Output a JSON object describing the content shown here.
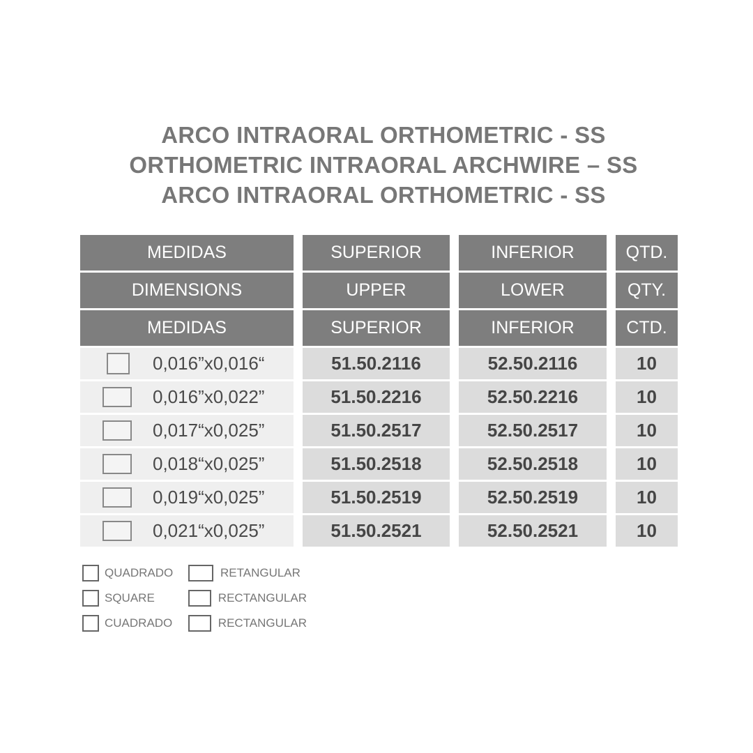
{
  "titles": [
    "ARCO INTRAORAL ORTHOMETRIC - SS",
    "ORTHOMETRIC INTRAORAL ARCHWIRE – SS",
    "ARCO INTRAORAL ORTHOMETRIC - SS"
  ],
  "headers": [
    [
      "MEDIDAS",
      "SUPERIOR",
      "INFERIOR",
      "QTD."
    ],
    [
      "DIMENSIONS",
      "UPPER",
      "LOWER",
      "QTY."
    ],
    [
      "MEDIDAS",
      "SUPERIOR",
      "INFERIOR",
      "CTD."
    ]
  ],
  "rows": [
    {
      "shape": "square",
      "dim": "0,016”x0,016“",
      "upper": "51.50.2116",
      "lower": "52.50.2116",
      "qty": "10"
    },
    {
      "shape": "rectangular",
      "dim": "0,016”x0,022”",
      "upper": "51.50.2216",
      "lower": "52.50.2216",
      "qty": "10"
    },
    {
      "shape": "rectangular",
      "dim": "0,017“x0,025”",
      "upper": "51.50.2517",
      "lower": "52.50.2517",
      "qty": "10"
    },
    {
      "shape": "rectangular",
      "dim": "0,018“x0,025”",
      "upper": "51.50.2518",
      "lower": "52.50.2518",
      "qty": "10"
    },
    {
      "shape": "rectangular",
      "dim": "0,019“x0,025”",
      "upper": "51.50.2519",
      "lower": "52.50.2519",
      "qty": "10"
    },
    {
      "shape": "rectangular",
      "dim": "0,021“x0,025”",
      "upper": "51.50.2521",
      "lower": "52.50.2521",
      "qty": "10"
    }
  ],
  "legend": {
    "square": [
      "QUADRADO",
      "SQUARE",
      "CUADRADO"
    ],
    "rectangular": [
      "RETANGULAR",
      "RECTANGULAR",
      "RECTANGULAR"
    ]
  },
  "colors": {
    "header_bg": "#7e7e7e",
    "cell_bg": "#dcdcdc",
    "dim_bg": "#efefef",
    "title": "#777777"
  }
}
